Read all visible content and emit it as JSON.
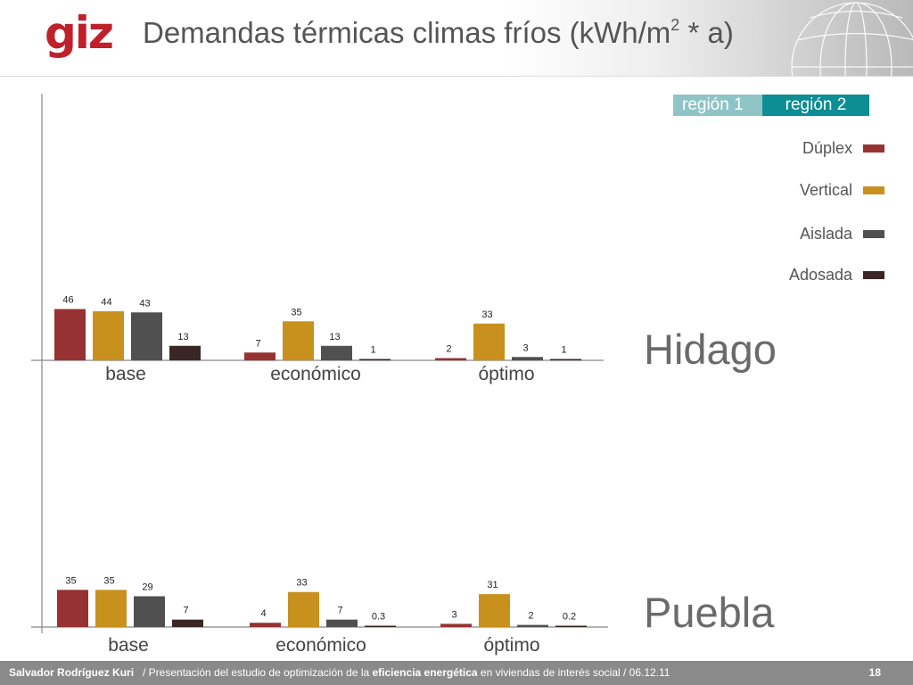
{
  "header": {
    "logo": "giz",
    "title_main": "Demandas térmicas climas fríos (kWh/m",
    "title_sup": "2",
    "title_end": " * a)"
  },
  "regions": [
    {
      "label": "región 1",
      "color": "#8fc4c7"
    },
    {
      "label": "región 2",
      "color": "#0d8d94"
    }
  ],
  "legend": [
    {
      "label": "Dúplex",
      "color": "#963232"
    },
    {
      "label": "Vertical",
      "color": "#c8911e"
    },
    {
      "label": "Aislada",
      "color": "#505050"
    },
    {
      "label": "Adosada",
      "color": "#3a2626"
    }
  ],
  "chart_data": [
    {
      "type": "bar",
      "city": "Hidago",
      "categories": [
        "base",
        "económico",
        "óptimo"
      ],
      "series": [
        {
          "name": "Dúplex",
          "values": [
            46,
            7,
            2
          ],
          "labels": [
            "46",
            "7",
            "2"
          ]
        },
        {
          "name": "Vertical",
          "values": [
            44,
            35,
            33
          ],
          "labels": [
            "44",
            "35",
            "33"
          ]
        },
        {
          "name": "Aislada",
          "values": [
            43,
            13,
            3
          ],
          "labels": [
            "43",
            "13",
            "3"
          ]
        },
        {
          "name": "Adosada",
          "values": [
            13,
            1,
            1
          ],
          "labels": [
            "13",
            "1",
            "1"
          ]
        }
      ],
      "ylim": [
        0,
        105
      ]
    },
    {
      "type": "bar",
      "city": "Puebla",
      "categories": [
        "base",
        "económico",
        "óptimo"
      ],
      "series": [
        {
          "name": "Dúplex",
          "values": [
            35,
            4,
            3
          ],
          "labels": [
            "35",
            "4",
            "3"
          ]
        },
        {
          "name": "Vertical",
          "values": [
            35,
            33,
            31
          ],
          "labels": [
            "35",
            "33",
            "31"
          ]
        },
        {
          "name": "Aislada",
          "values": [
            29,
            7,
            2
          ],
          "labels": [
            "29",
            "7",
            "2"
          ]
        },
        {
          "name": "Adosada",
          "values": [
            7,
            0.3,
            0.2
          ],
          "labels": [
            "7",
            "0.3",
            "0.2"
          ]
        }
      ],
      "ylim": [
        0,
        105
      ]
    }
  ],
  "footer": {
    "author": "Salvador Rodríguez Kuri",
    "desc_pre": "/ Presentación del estudio de optimización de la ",
    "desc_bold": "eficiencia energética",
    "desc_post": " en viviendas de interés social  /  06.12.11",
    "page": "18"
  }
}
